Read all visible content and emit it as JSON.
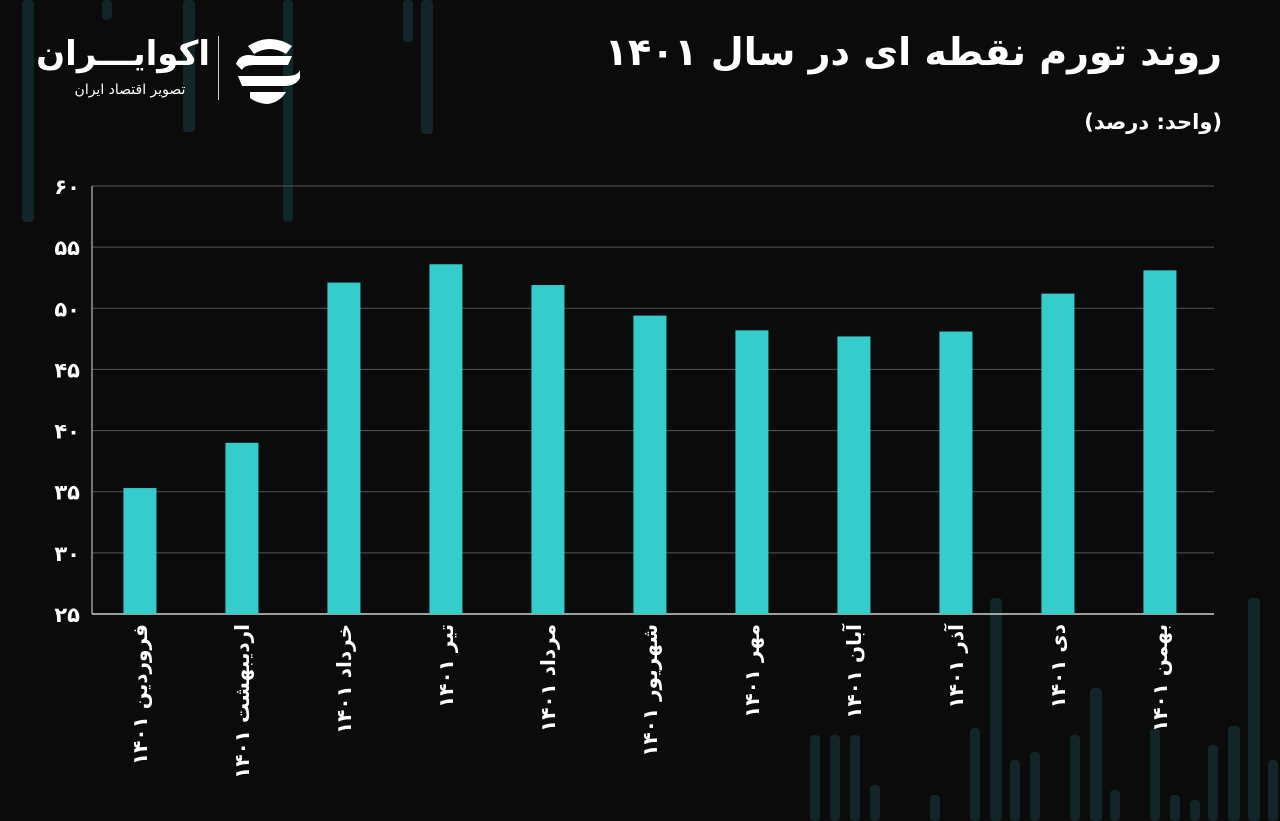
{
  "title": "روند تورم نقطه ای در سال ۱۴۰۱",
  "unit_label": "(واحد: درصد)",
  "logo": {
    "name": "اکوایـــران",
    "tagline": "تصویر اقتصاد ایران",
    "icon": "ekoiran-logo-mark"
  },
  "colors": {
    "bar": "#35cccc",
    "background": "#0b0b0c",
    "grid": "#555555"
  },
  "chart_data": {
    "type": "bar",
    "title": "روند تورم نقطه ای در سال ۱۴۰۱",
    "ylabel": "(واحد: درصد)",
    "ylim": [
      25,
      60
    ],
    "yticks": [
      25,
      30,
      35,
      40,
      45,
      50,
      55,
      60
    ],
    "ytick_labels": [
      "۲۵",
      "۳۰",
      "۳۵",
      "۴۰",
      "۴۵",
      "۵۰",
      "۵۵",
      "۶۰"
    ],
    "grid": true,
    "categories": [
      "فروردین ۱۴۰۱",
      "اردیبهشت ۱۴۰۱",
      "خرداد ۱۴۰۱",
      "تیر ۱۴۰۱",
      "مرداد ۱۴۰۱",
      "شهریور ۱۴۰۱",
      "مهر ۱۴۰۱",
      "آبان ۱۴۰۱",
      "آذر ۱۴۰۱",
      "دی ۱۴۰۱",
      "بهمن ۱۴۰۱"
    ],
    "values": [
      35.3,
      39,
      52.1,
      53.6,
      51.9,
      49.4,
      48.2,
      47.7,
      48.1,
      51.2,
      53.1
    ]
  }
}
